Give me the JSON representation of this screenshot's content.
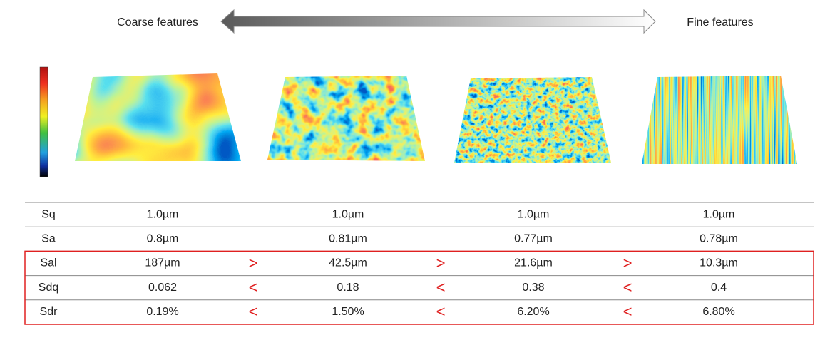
{
  "header": {
    "left": "Coarse features",
    "right": "Fine features"
  },
  "table": {
    "rows": [
      {
        "parameter": "Sq",
        "values": [
          "1.0µm",
          "1.0µm",
          "1.0µm",
          "1.0µm"
        ]
      },
      {
        "parameter": "Sa",
        "values": [
          "0.8µm",
          "0.81µm",
          "0.77µm",
          "0.78µm"
        ]
      },
      {
        "parameter": "Sal",
        "values": [
          "187µm",
          "42.5µm",
          "21.6µm",
          "10.3µm"
        ],
        "comparisons": [
          ">",
          ">",
          ">"
        ]
      },
      {
        "parameter": "Sdq",
        "values": [
          "0.062",
          "0.18",
          "0.38",
          "0.4"
        ],
        "comparisons": [
          "<",
          "<",
          "<"
        ]
      },
      {
        "parameter": "Sdr",
        "values": [
          "0.19%",
          "1.50%",
          "6.20%",
          "6.80%"
        ],
        "comparisons": [
          "<",
          "<",
          "<"
        ]
      }
    ]
  }
}
